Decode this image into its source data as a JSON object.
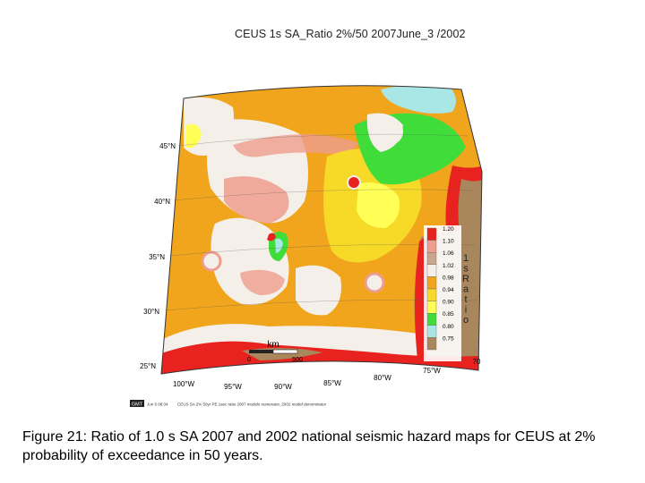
{
  "title": "CEUS 1s SA_Ratio 2%/50 2007June_3 /2002",
  "latitude_labels": [
    "45°N",
    "40°N",
    "35°N",
    "30°N",
    "25°N"
  ],
  "longitude_labels": [
    "100°W",
    "95°W",
    "90°W",
    "85°W",
    "80°W",
    "75°W",
    "70"
  ],
  "scale_bar": {
    "unit": "km",
    "start": "0",
    "end": "500"
  },
  "legend": {
    "title_chars": [
      "1",
      "s",
      "R",
      "a",
      "t",
      "i",
      "o"
    ],
    "items": [
      {
        "label": "1.20",
        "color": "#e8231f"
      },
      {
        "label": "1.10",
        "color": "#ef9d8e"
      },
      {
        "label": "1.06",
        "color": "#c9a68c"
      },
      {
        "label": "1.02",
        "color": "#f4efe9"
      },
      {
        "label": "0.98",
        "color": "#f0a51c"
      },
      {
        "label": "0.94",
        "color": "#f7d928"
      },
      {
        "label": "0.90",
        "color": "#ffff55"
      },
      {
        "label": "0.85",
        "color": "#3fdc3a"
      },
      {
        "label": "0.80",
        "color": "#a9e7e6"
      },
      {
        "label": "0.75",
        "color": "#a9865c"
      }
    ]
  },
  "gmt_stamp": {
    "logo": "GMT",
    "date": "Jun  5 08:34",
    "text": "CEUS SA 2% 50yr PE 1sec ratio 2007 models numerator, 2002 model denominator"
  },
  "colors": {
    "orange": "#f0a51c",
    "white_zone": "#f4efe9",
    "pink": "#ef9d8e",
    "red": "#e8231f",
    "yellow": "#f7d928",
    "light_yellow": "#ffff55",
    "green": "#3fdc3a",
    "cyan": "#a9e7e6",
    "brown": "#a9865c"
  },
  "caption": "Figure 21: Ratio of 1.0 s SA 2007 and 2002 national seismic hazard maps for CEUS at 2% probability of exceedance in 50 years."
}
